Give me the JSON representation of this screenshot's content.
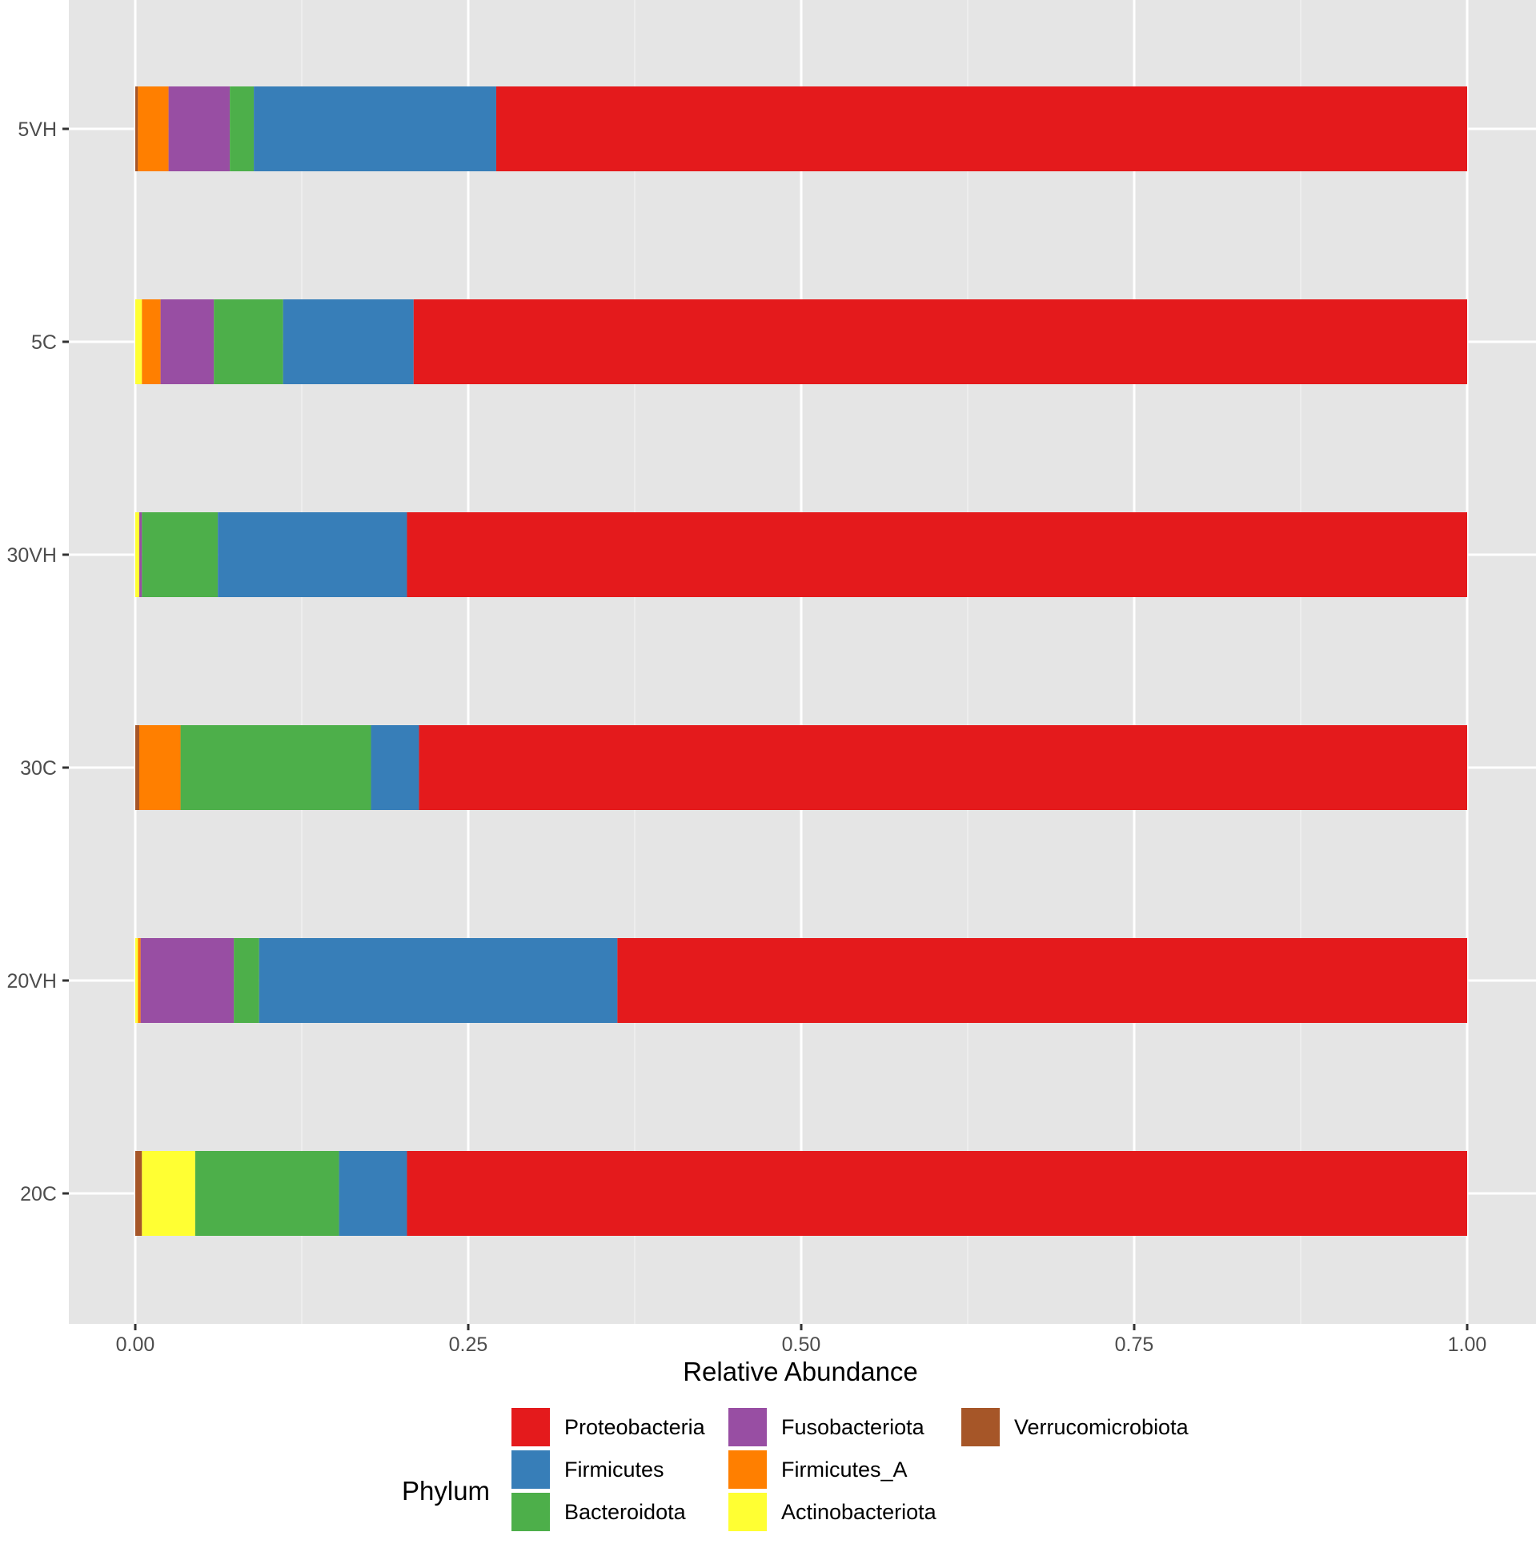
{
  "chart_data": {
    "type": "bar",
    "orientation": "horizontal",
    "stacked": true,
    "title": "",
    "xlabel": "Relative Abundance",
    "ylabel": "",
    "xlim": [
      0,
      1
    ],
    "xticks": [
      0,
      0.25,
      0.5,
      0.75,
      1
    ],
    "xtick_labels": [
      "0.00",
      "0.25",
      "0.50",
      "0.75",
      "1.00"
    ],
    "grid": true,
    "legend_position": "bottom",
    "legend_title": "Phylum",
    "categories": [
      "5VH",
      "5C",
      "30VH",
      "30C",
      "20VH",
      "20C"
    ],
    "series": [
      {
        "name": "Verrucomicrobiota",
        "color": "#A65628",
        "values": [
          0.002,
          0.0,
          0.0,
          0.003,
          0.0,
          0.005
        ]
      },
      {
        "name": "Actinobacteriota",
        "color": "#FFFF33",
        "values": [
          0.0,
          0.005,
          0.003,
          0.0,
          0.002,
          0.04
        ]
      },
      {
        "name": "Firmicutes_A",
        "color": "#FF7F00",
        "values": [
          0.023,
          0.014,
          0.0,
          0.031,
          0.002,
          0.0
        ]
      },
      {
        "name": "Fusobacteriota",
        "color": "#984EA3",
        "values": [
          0.046,
          0.04,
          0.002,
          0.0,
          0.07,
          0.0
        ]
      },
      {
        "name": "Bacteroidota",
        "color": "#4DAF4A",
        "values": [
          0.018,
          0.052,
          0.057,
          0.143,
          0.019,
          0.108
        ]
      },
      {
        "name": "Firmicutes",
        "color": "#377EB8",
        "values": [
          0.182,
          0.098,
          0.142,
          0.036,
          0.269,
          0.051
        ]
      },
      {
        "name": "Proteobacteria",
        "color": "#E41A1C",
        "values": [
          0.729,
          0.791,
          0.796,
          0.787,
          0.638,
          0.796
        ]
      }
    ],
    "legend_order": [
      "Proteobacteria",
      "Firmicutes",
      "Bacteroidota",
      "Fusobacteriota",
      "Firmicutes_A",
      "Actinobacteriota",
      "Verrucomicrobiota"
    ]
  }
}
